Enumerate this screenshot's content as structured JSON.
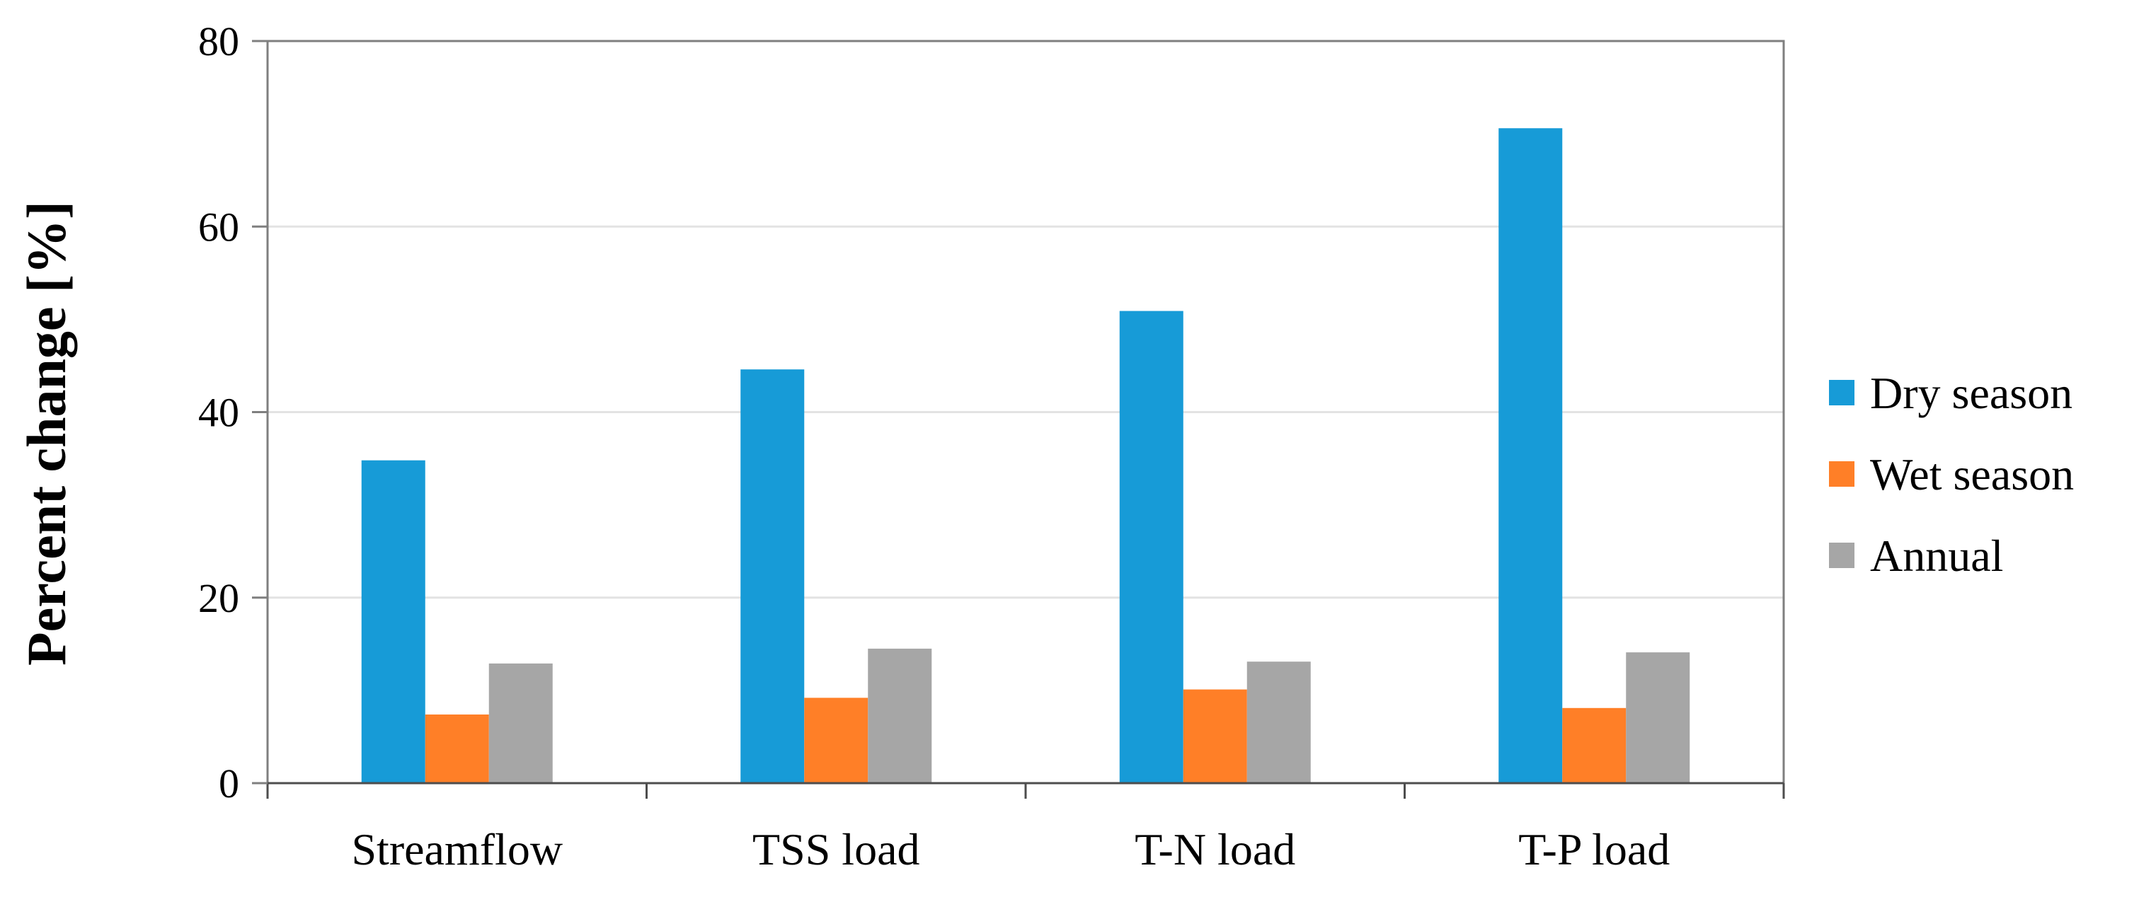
{
  "chart_data": {
    "type": "bar",
    "categories": [
      "Streamflow",
      "TSS load",
      "T-N load",
      "T-P load"
    ],
    "series": [
      {
        "name": "Dry season",
        "values": [
          34.8,
          44.6,
          50.9,
          70.6
        ],
        "color": "#179BD7"
      },
      {
        "name": "Wet season",
        "values": [
          7.4,
          9.2,
          10.1,
          8.1
        ],
        "color": "#FF7F27"
      },
      {
        "name": "Annual",
        "values": [
          12.9,
          14.5,
          13.1,
          14.1
        ],
        "color": "#A6A6A6"
      }
    ],
    "ylabel": "Percent change [%]",
    "xlabel": "",
    "ylim": [
      0,
      80
    ],
    "yticks": [
      "0",
      "20",
      "40",
      "60",
      "80"
    ],
    "grid": true,
    "legend_position": "right"
  }
}
